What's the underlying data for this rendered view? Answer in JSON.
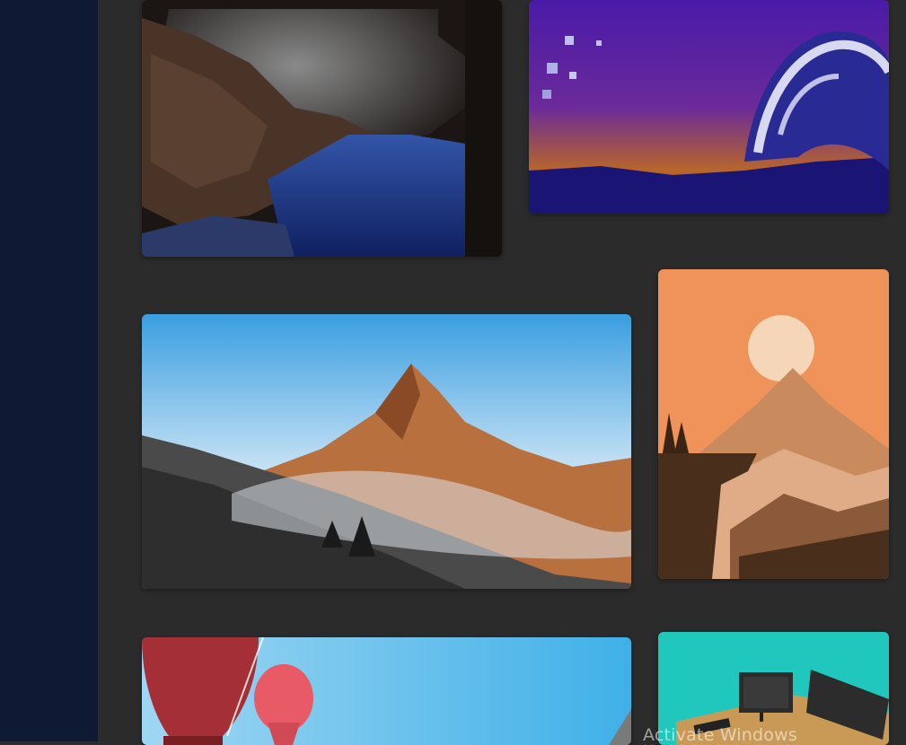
{
  "sidebar": {
    "background": "#0e1a33"
  },
  "gallery": {
    "background": "#2b2b2b",
    "items": [
      {
        "subject": "cliff-and-sea-painting",
        "accent": "#1e3a8a"
      },
      {
        "subject": "pixel-wave-painting",
        "accent": "#4b1fa8"
      },
      {
        "subject": "mountain-landscape-painting",
        "accent": "#b8652f"
      },
      {
        "subject": "orange-sunset-mountain-painting",
        "accent": "#f0935a"
      },
      {
        "subject": "hot-air-balloons-painting",
        "accent": "#e0545f"
      },
      {
        "subject": "desk-monitors-render",
        "accent": "#1fc7bd"
      }
    ]
  },
  "watermark": {
    "text": "Activate Windows"
  }
}
